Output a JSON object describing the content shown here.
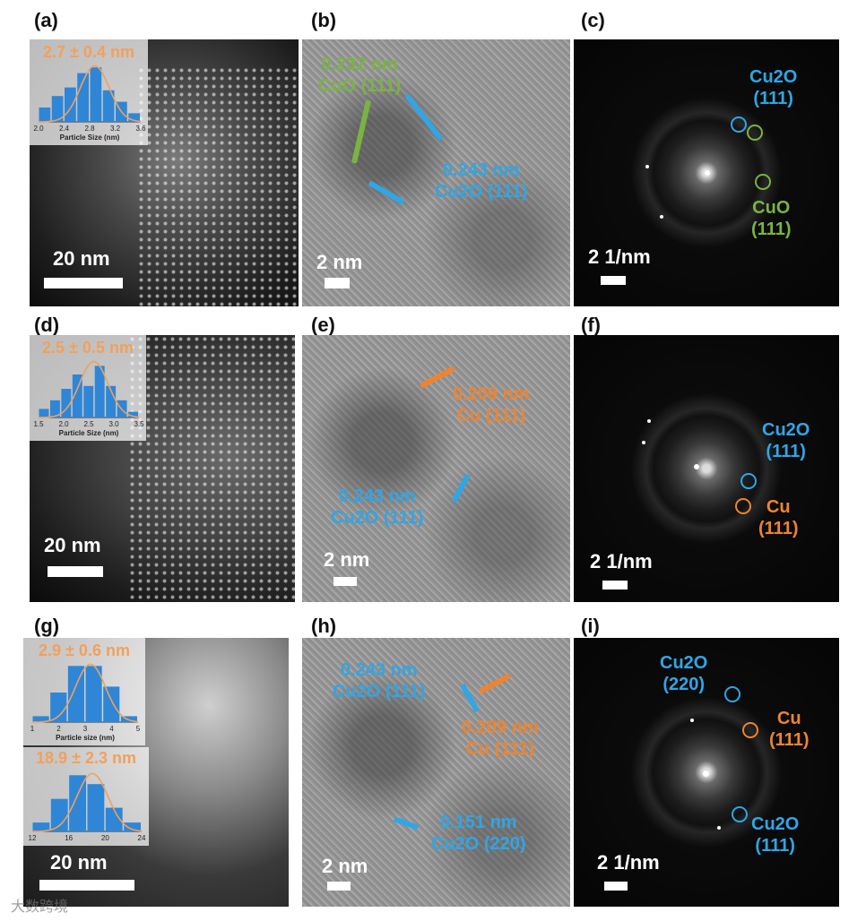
{
  "panel_labels": [
    "(a)",
    "(b)",
    "(c)",
    "(d)",
    "(e)",
    "(f)",
    "(g)",
    "(h)",
    "(i)"
  ],
  "scale_bars": {
    "a": "20 nm",
    "b": "2 nm",
    "c": "2 1/nm",
    "d": "20 nm",
    "e": "2 nm",
    "f": "2 1/nm",
    "g": "20 nm",
    "h": "2 nm",
    "i": "2 1/nm"
  },
  "insets": {
    "a": {
      "title": "2.7 ± 0.4 nm",
      "xlabel": "Particle Size (nm)",
      "ticks": [
        "2.0",
        "2.4",
        "2.8",
        "3.2",
        "3.6"
      ],
      "bars": [
        0.25,
        0.45,
        0.6,
        0.85,
        0.95,
        0.55,
        0.35,
        0.15
      ]
    },
    "d": {
      "title": "2.5 ± 0.5 nm",
      "xlabel": "Particle Size (nm)",
      "ticks": [
        "1.5",
        "2.0",
        "2.5",
        "3.0",
        "3.5"
      ],
      "bars": [
        0.15,
        0.3,
        0.5,
        0.75,
        0.55,
        0.9,
        0.55,
        0.3,
        0.1
      ]
    },
    "g1": {
      "title": "2.9 ± 0.6 nm",
      "xlabel": "Particle size (nm)",
      "ticks": [
        "1",
        "2",
        "3",
        "4",
        "5"
      ],
      "bars": [
        0.1,
        0.5,
        0.95,
        0.95,
        0.6,
        0.1
      ]
    },
    "g2": {
      "title": "18.9 ± 2.3 nm",
      "xlabel": "",
      "ticks": [
        "12",
        "16",
        "20",
        "24"
      ],
      "bars": [
        0.15,
        0.55,
        0.95,
        0.8,
        0.4,
        0.15
      ]
    }
  },
  "annotations": {
    "b_cuo": [
      "0.232 nm",
      "CuO (111)"
    ],
    "b_cu2o": [
      "0.243 nm",
      "Cu2O (111)"
    ],
    "c_cu2o": [
      "Cu2O",
      "(111)"
    ],
    "c_cuo": [
      "CuO",
      "(111)"
    ],
    "e_cu": [
      "0.209 nm",
      "Cu (111)"
    ],
    "e_cu2o": [
      "0.243 nm",
      "Cu2O (111)"
    ],
    "f_cu2o": [
      "Cu2O",
      "(111)"
    ],
    "f_cu": [
      "Cu",
      "(111)"
    ],
    "h_cu2o_111": [
      "0.243 nm",
      "Cu2O (111)"
    ],
    "h_cu": [
      "0.209 nm",
      "Cu (111)"
    ],
    "h_cu2o_220": [
      "0.151 nm",
      "Cu2O (220)"
    ],
    "i_cu2o_220": [
      "Cu2O",
      "(220)"
    ],
    "i_cu": [
      "Cu",
      "(111)"
    ],
    "i_cu2o_111": [
      "Cu2O",
      "(111)"
    ]
  },
  "colors": {
    "cu2o": "#2fa6e6",
    "cuo": "#7ab342",
    "cu": "#ee8430",
    "histogram": "#2f86d6",
    "fit": "#f2a05a"
  },
  "watermark": "大数跨境"
}
